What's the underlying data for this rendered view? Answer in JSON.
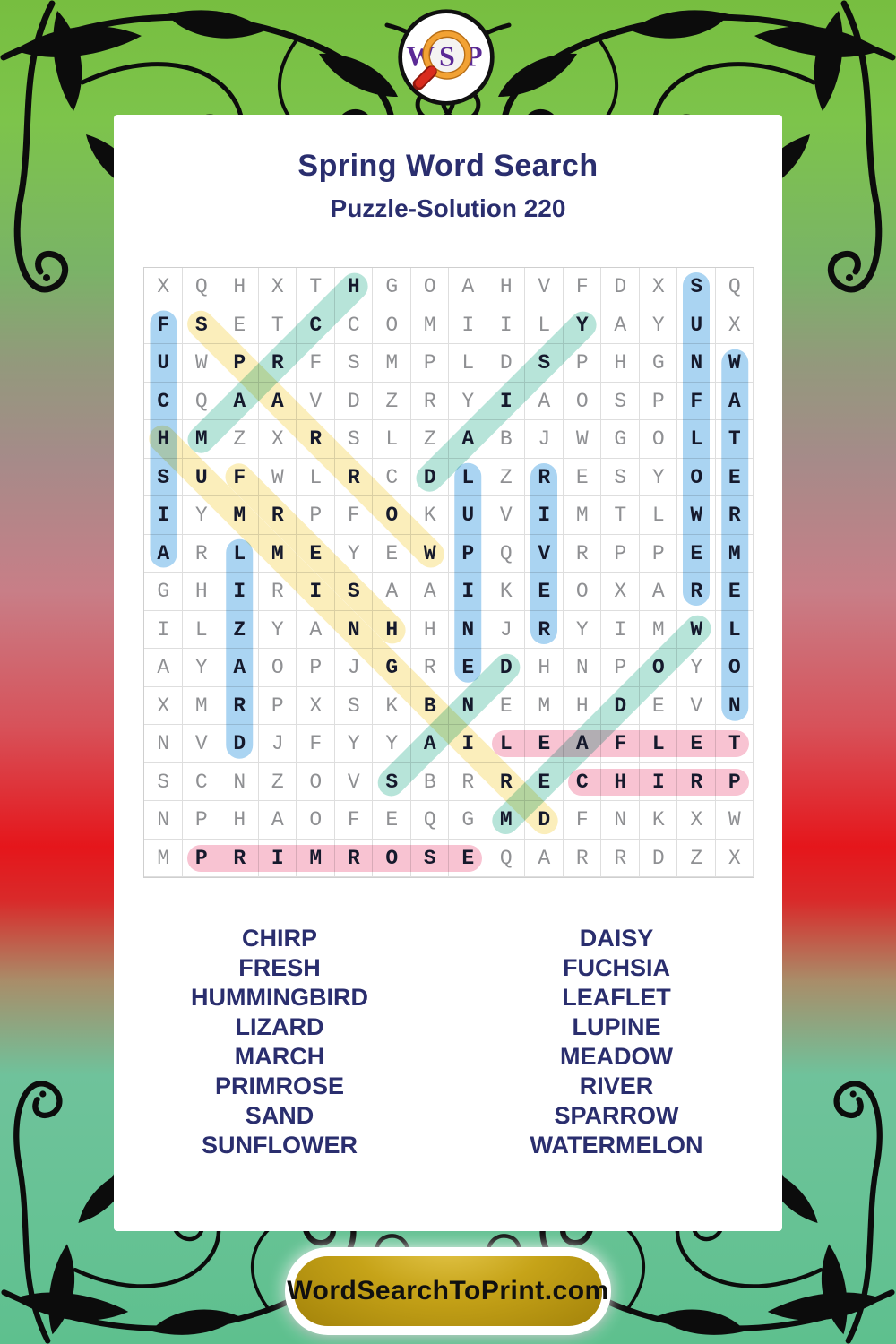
{
  "logo": {
    "letters": [
      "W",
      "S",
      "P"
    ]
  },
  "header": {
    "title": "Spring Word Search",
    "subtitle": "Puzzle-Solution 220"
  },
  "puzzle": {
    "grid_rows": [
      "XQHXTHGOAHVFDXSQ",
      "FSETCCOMIILYAYUX",
      "UWPRFSMPLDSPHGNW",
      "CQAAVDZRYIAOSPFA",
      "HMZXRSLZABJWGOLT",
      "SUFWLRCDLZRESYOE",
      "IYMRPFOKUVIMTLWR",
      "ARLMEYEWPQVRPPEM",
      "GHIRISAAIKEOXARE",
      "ILZYANHHNJRYIMWL",
      "AYAOPJGREDHNPOYO",
      "XMRPXSKBNEMHDEVN",
      "NVDJFYYAILEAFLET",
      "SCNZOVSBRRECHIRP",
      "NPHAOFEQGMDFNKXW",
      "MPRIMROSEQARRDZX"
    ],
    "solutions": [
      {
        "word": "FUCHSIA",
        "row": 2,
        "col": 1,
        "dir": "down",
        "color": "blue"
      },
      {
        "word": "SPARROW",
        "row": 2,
        "col": 2,
        "dir": "down-right",
        "color": "yellow"
      },
      {
        "word": "HUMMINGBIRD",
        "row": 5,
        "col": 1,
        "dir": "down-right",
        "color": "yellow"
      },
      {
        "word": "FRESH",
        "row": 6,
        "col": 3,
        "dir": "down-right",
        "color": "yellow"
      },
      {
        "word": "MARCH",
        "row": 5,
        "col": 2,
        "dir": "up-right",
        "color": "teal"
      },
      {
        "word": "DAISY",
        "row": 6,
        "col": 8,
        "dir": "up-right",
        "color": "teal"
      },
      {
        "word": "SAND",
        "row": 14,
        "col": 7,
        "dir": "up-right",
        "color": "teal"
      },
      {
        "word": "MEADOW",
        "row": 15,
        "col": 10,
        "dir": "up-right",
        "color": "teal"
      },
      {
        "word": "SUNFLOWER",
        "row": 1,
        "col": 15,
        "dir": "down",
        "color": "blue"
      },
      {
        "word": "WATERMELON",
        "row": 3,
        "col": 16,
        "dir": "down",
        "color": "blue"
      },
      {
        "word": "LUPINE",
        "row": 6,
        "col": 9,
        "dir": "down",
        "color": "blue"
      },
      {
        "word": "RIVER",
        "row": 6,
        "col": 11,
        "dir": "down",
        "color": "blue"
      },
      {
        "word": "LIZARD",
        "row": 8,
        "col": 3,
        "dir": "down",
        "color": "blue"
      },
      {
        "word": "LEAFLET",
        "row": 13,
        "col": 10,
        "dir": "right",
        "color": "pink"
      },
      {
        "word": "CHIRP",
        "row": 14,
        "col": 12,
        "dir": "right",
        "color": "pink"
      },
      {
        "word": "PRIMROSE",
        "row": 16,
        "col": 2,
        "dir": "right",
        "color": "pink"
      }
    ],
    "highlight_colors": {
      "blue": "#aad4f2",
      "yellow": "#fbeebb",
      "teal": "#b7e4d9",
      "pink": "#f8c3d2"
    }
  },
  "word_lists": {
    "left": [
      "CHIRP",
      "FRESH",
      "HUMMINGBIRD",
      "LIZARD",
      "MARCH",
      "PRIMROSE",
      "SAND",
      "SUNFLOWER"
    ],
    "right": [
      "DAISY",
      "FUCHSIA",
      "LEAFLET",
      "LUPINE",
      "MEADOW",
      "RIVER",
      "SPARROW",
      "WATERMELON"
    ]
  },
  "footer": {
    "button_label": "WordSearchToPrint.com"
  }
}
